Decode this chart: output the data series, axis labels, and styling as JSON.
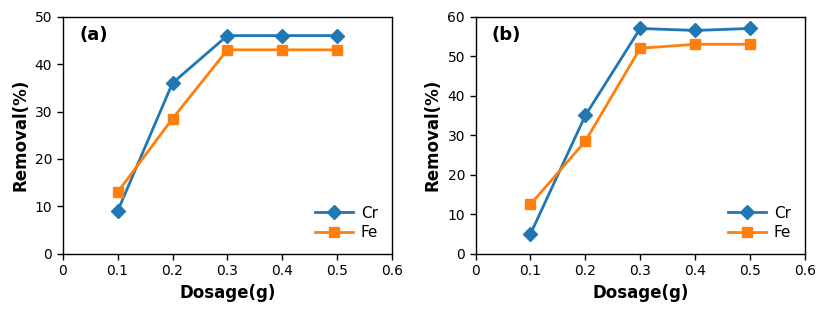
{
  "panel_a": {
    "label": "(a)",
    "x": [
      0.1,
      0.2,
      0.3,
      0.4,
      0.5
    ],
    "cr_y": [
      9,
      36,
      46,
      46,
      46
    ],
    "fe_y": [
      13,
      28.5,
      43,
      43,
      43
    ],
    "ylim": [
      0,
      50
    ],
    "yticks": [
      0,
      10,
      20,
      30,
      40,
      50
    ],
    "xlim": [
      0,
      0.6
    ],
    "xticks": [
      0,
      0.1,
      0.2,
      0.3,
      0.4,
      0.5,
      0.6
    ],
    "ylabel": "Removal(%)",
    "xlabel": "Dosage(g)",
    "legend_loc": "lower right"
  },
  "panel_b": {
    "label": "(b)",
    "x": [
      0.1,
      0.2,
      0.3,
      0.4,
      0.5
    ],
    "cr_y": [
      5,
      35,
      57,
      56.5,
      57
    ],
    "fe_y": [
      12.5,
      28.5,
      52,
      53,
      53
    ],
    "ylim": [
      0,
      60
    ],
    "yticks": [
      0,
      10,
      20,
      30,
      40,
      50,
      60
    ],
    "xlim": [
      0,
      0.6
    ],
    "xticks": [
      0,
      0.1,
      0.2,
      0.3,
      0.4,
      0.5,
      0.6
    ],
    "ylabel": "Removal(%)",
    "xlabel": "Dosage(g)",
    "legend_loc": "lower right"
  },
  "cr_color": "#1f77b4",
  "fe_color": "#ff7f0e",
  "cr_marker": "D",
  "fe_marker": "s",
  "linewidth": 2.0,
  "markersize": 7,
  "legend_cr": "Cr",
  "legend_fe": "Fe",
  "tick_fontsize": 10,
  "label_fontsize": 12,
  "legend_fontsize": 11,
  "panel_label_fontsize": 13
}
